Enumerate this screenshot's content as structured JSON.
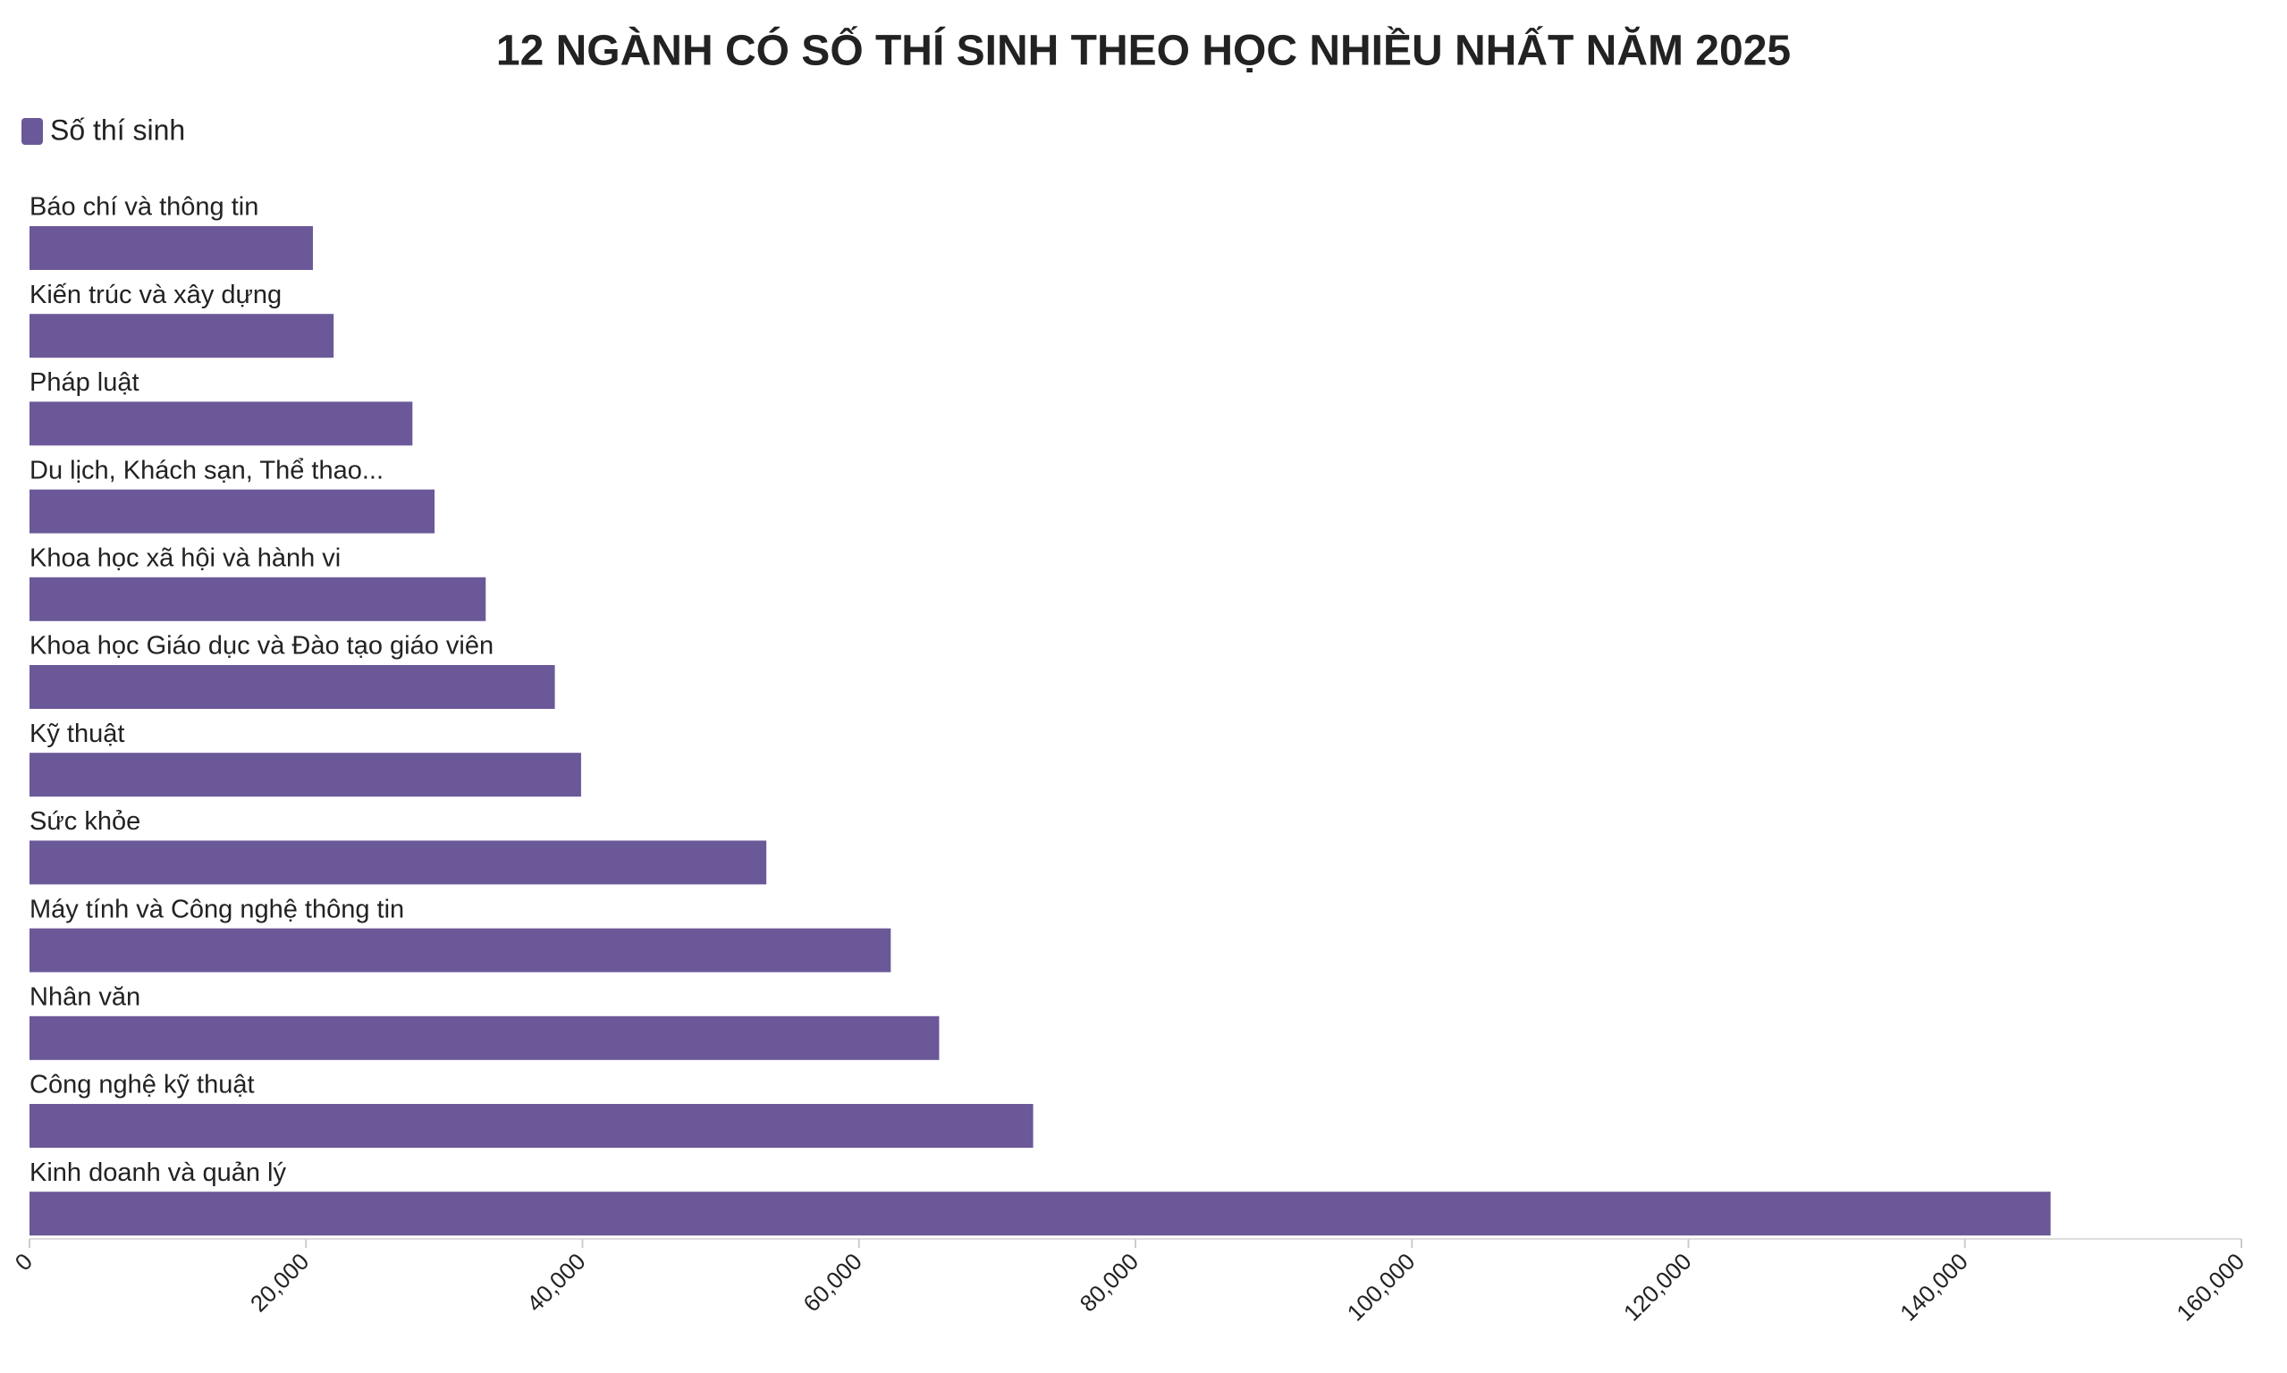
{
  "chart_data": {
    "type": "bar",
    "orientation": "horizontal",
    "title": "12 NGÀNH CÓ SỐ THÍ SINH THEO HỌC NHIỀU NHẤT NĂM 2025",
    "categories": [
      "Báo chí và thông tin",
      "Kiến trúc và xây dựng",
      "Pháp luật",
      "Du lịch, Khách sạn, Thể thao...",
      "Khoa học xã hội và hành vi",
      "Khoa học Giáo dục và Đào tạo giáo viên",
      "Kỹ thuật",
      "Sức khỏe",
      "Máy tính và Công nghệ thông tin",
      "Nhân văn",
      "Công nghệ kỹ thuật",
      "Kinh doanh và quản lý"
    ],
    "series": [
      {
        "name": "Số thí sinh",
        "color": "#6b5898",
        "values": [
          20500,
          22000,
          27700,
          29300,
          33000,
          38000,
          39900,
          53300,
          62300,
          65800,
          72600,
          146200
        ]
      }
    ],
    "xlim": [
      0,
      160000
    ],
    "xticks": [
      0,
      {
        "value": 20000,
        "label": "20,000"
      },
      {
        "value": 40000,
        "label": "40,000"
      },
      {
        "value": 60000,
        "label": "60,000"
      },
      {
        "value": 80000,
        "label": "80,000"
      },
      {
        "value": 100000,
        "label": "100,000"
      },
      {
        "value": 120000,
        "label": "120,000"
      },
      {
        "value": 140000,
        "label": "140,000"
      },
      {
        "value": 160000,
        "label": "160,000"
      }
    ],
    "legend": "top-left"
  }
}
